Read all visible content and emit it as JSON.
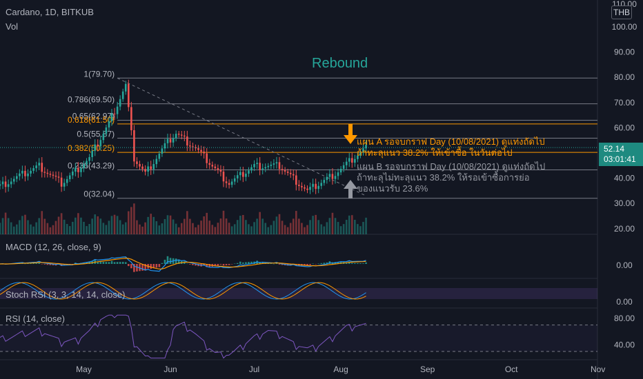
{
  "header": {
    "title": "Cardano, 1D, BITKUB",
    "volume_label": "Vol",
    "currency": "THB"
  },
  "price_tag": {
    "price": "52.14",
    "countdown": "03:01:41"
  },
  "annotations": {
    "rebound": "Rebound",
    "plan_a_line1": "แผน A รอจบกราฟ Day (10/08/2021) ดูแท่งถัดไป",
    "plan_a_line2": "ถ้าทะลุแนว 38.2% ให้เข้าซื้อ ในวันต่อไป",
    "plan_b_line1": "แผน B รอจบกราฟ Day (10/08/2021) ดูแท่งถัดไป",
    "plan_b_line2": "ถ้าทะลุไม่ทะลุแนว 38.2% ให้รอเข้าซื้อการย่อ",
    "plan_b_line3": "ของแนวรับ 23.6%"
  },
  "indicators": {
    "macd": "MACD (12, 26, close, 9)",
    "stoch": "Stoch RSI (3, 3, 14, 14, close)",
    "rsi": "RSI (14, close)"
  },
  "colors": {
    "up": "#26a69a",
    "down": "#ef5350",
    "fib_orange": "#ff9800",
    "macd": "#2196f3",
    "signal": "#ff9800",
    "rsi": "#7e57c2",
    "background": "#131722"
  },
  "chart_data": {
    "type": "candlestick",
    "title": "Cardano, 1D, BITKUB",
    "price_axis": {
      "min": 20,
      "max": 110,
      "ticks": [
        "110.00",
        "100.00",
        "90.00",
        "80.00",
        "70.00",
        "60.00",
        "50.00",
        "40.00",
        "30.00",
        "20.00"
      ]
    },
    "macd_axis": {
      "ticks": [
        "0.00"
      ]
    },
    "stoch_axis": {
      "ticks": [
        "0.00"
      ]
    },
    "rsi_axis": {
      "ticks": [
        "80.00",
        "40.00"
      ]
    },
    "x_labels": [
      "May",
      "Jun",
      "Jul",
      "Aug",
      "Sep",
      "Oct",
      "Nov"
    ],
    "fib_levels": [
      {
        "label": "1(79.70)",
        "value": 79.7
      },
      {
        "label": "0.786(69.50)",
        "value": 69.5
      },
      {
        "label": "0.65(62.97)",
        "value": 62.97
      },
      {
        "label": "0.618(61.50)",
        "value": 61.5
      },
      {
        "label": "0.5(55.87)",
        "value": 55.87
      },
      {
        "label": "0.382(50.25)",
        "value": 50.25
      },
      {
        "label": "0.236(43.29)",
        "value": 43.29
      },
      {
        "label": "0(32.04)",
        "value": 32.04
      }
    ],
    "close_key_points": [
      {
        "date": "2021-04-01",
        "close": 37
      },
      {
        "date": "2021-04-15",
        "close": 45
      },
      {
        "date": "2021-04-23",
        "close": 38
      },
      {
        "date": "2021-05-03",
        "close": 48
      },
      {
        "date": "2021-05-10",
        "close": 62
      },
      {
        "date": "2021-05-16",
        "close": 77
      },
      {
        "date": "2021-05-19",
        "close": 48
      },
      {
        "date": "2021-05-23",
        "close": 42
      },
      {
        "date": "2021-05-30",
        "close": 53
      },
      {
        "date": "2021-06-03",
        "close": 58
      },
      {
        "date": "2021-06-10",
        "close": 52
      },
      {
        "date": "2021-06-22",
        "close": 38
      },
      {
        "date": "2021-07-01",
        "close": 45
      },
      {
        "date": "2021-07-10",
        "close": 45
      },
      {
        "date": "2021-07-20",
        "close": 35
      },
      {
        "date": "2021-07-30",
        "close": 42
      },
      {
        "date": "2021-08-10",
        "close": 52.14
      }
    ],
    "rsi_level": 70
  }
}
